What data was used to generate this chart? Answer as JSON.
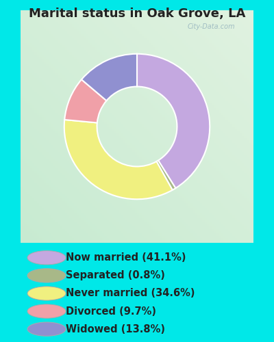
{
  "title": "Marital status in Oak Grove, LA",
  "slices": [
    41.1,
    0.8,
    34.6,
    9.7,
    13.8
  ],
  "colors": [
    "#c4a8e0",
    "#a8b888",
    "#f0f080",
    "#f0a0a8",
    "#9090d0"
  ],
  "labels": [
    "Now married (41.1%)",
    "Separated (0.8%)",
    "Never married (34.6%)",
    "Divorced (9.7%)",
    "Widowed (13.8%)"
  ],
  "legend_colors": [
    "#c4a8e0",
    "#a8b888",
    "#f0f080",
    "#f0a0a8",
    "#9090d0"
  ],
  "bg_outer": "#00e8e8",
  "bg_inner_color": "#d8ede0",
  "watermark": "City-Data.com",
  "title_fontsize": 13,
  "legend_fontsize": 10.5,
  "title_color": "#222222",
  "legend_text_color": "#222222",
  "donut_width": 0.45
}
